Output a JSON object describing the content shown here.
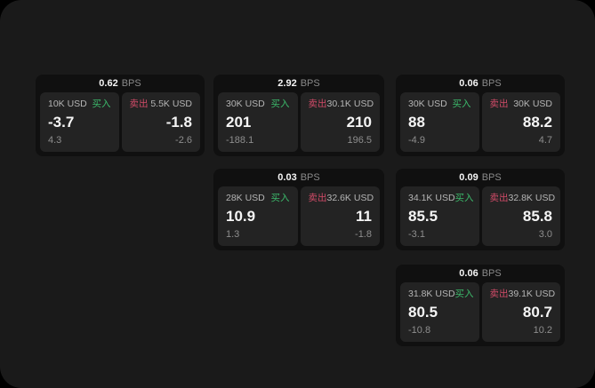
{
  "page": {
    "background_outer": "#000000",
    "background_surface": "#1a1a1a"
  },
  "colors": {
    "card_background": "#101010",
    "panel_background": "#232323",
    "value_text": "#f5f5f5",
    "notional_text": "#b5b5b5",
    "sub_text": "#8e8e8e",
    "bps_label_text": "#8a8a8a",
    "buy_green": "#3cba6b",
    "sell_red": "#d14b68"
  },
  "labels": {
    "bps": "BPS",
    "buy": "买入",
    "sell": "卖出"
  },
  "cards": [
    {
      "bps": "0.62",
      "buy": {
        "notional": "10K USD",
        "value": "-3.7",
        "sub": "4.3"
      },
      "sell": {
        "notional": "5.5K USD",
        "value": "-1.8",
        "sub": "-2.6"
      }
    },
    {
      "bps": "2.92",
      "buy": {
        "notional": "30K USD",
        "value": "201",
        "sub": "-188.1"
      },
      "sell": {
        "notional": "30.1K USD",
        "value": "210",
        "sub": "196.5"
      }
    },
    {
      "bps": "0.06",
      "buy": {
        "notional": "30K USD",
        "value": "88",
        "sub": "-4.9"
      },
      "sell": {
        "notional": "30K USD",
        "value": "88.2",
        "sub": "4.7"
      }
    },
    {
      "bps": "0.03",
      "buy": {
        "notional": "28K USD",
        "value": "10.9",
        "sub": "1.3"
      },
      "sell": {
        "notional": "32.6K USD",
        "value": "11",
        "sub": "-1.8"
      }
    },
    {
      "bps": "0.09",
      "buy": {
        "notional": "34.1K USD",
        "value": "85.5",
        "sub": "-3.1"
      },
      "sell": {
        "notional": "32.8K USD",
        "value": "85.8",
        "sub": "3.0"
      }
    },
    {
      "bps": "0.06",
      "buy": {
        "notional": "31.8K USD",
        "value": "80.5",
        "sub": "-10.8"
      },
      "sell": {
        "notional": "39.1K USD",
        "value": "80.7",
        "sub": "10.2"
      }
    }
  ]
}
